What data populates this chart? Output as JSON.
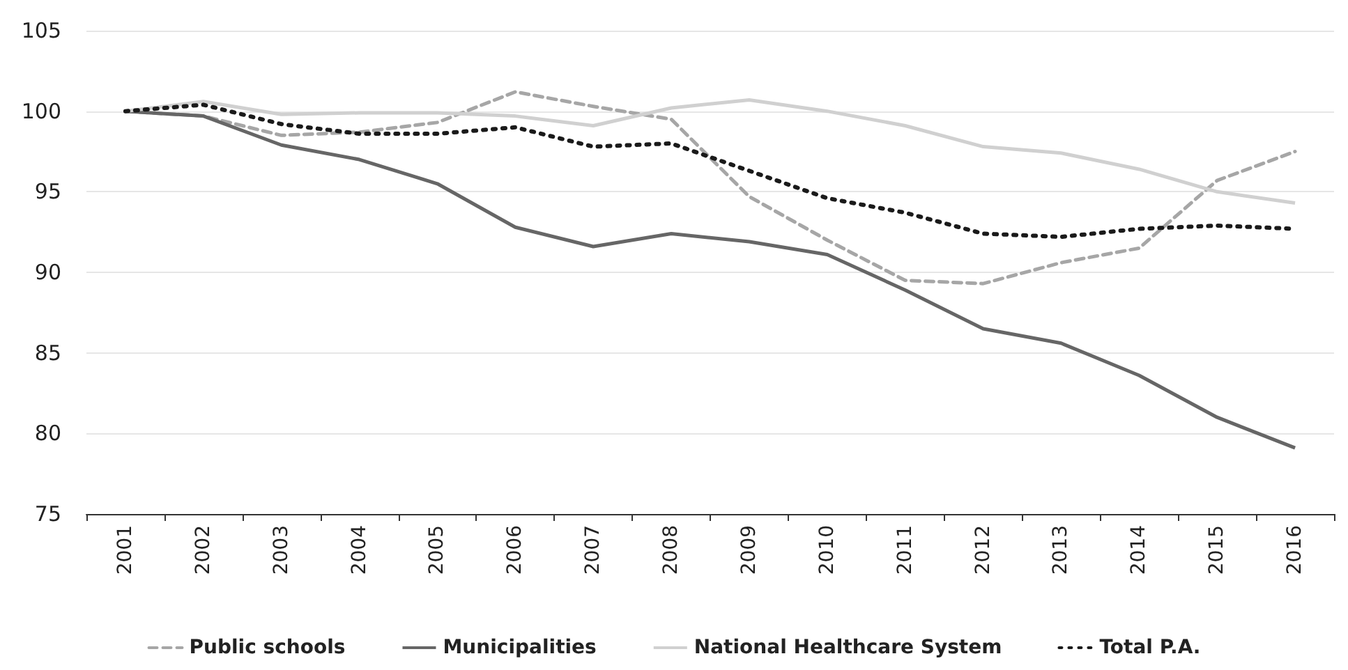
{
  "chart_data": {
    "type": "line",
    "categories": [
      "2001",
      "2002",
      "2003",
      "2004",
      "2005",
      "2006",
      "2007",
      "2008",
      "2009",
      "2010",
      "2011",
      "2012",
      "2013",
      "2014",
      "2015",
      "2016"
    ],
    "series": [
      {
        "name": "Public schools",
        "color": "#a6a6a6",
        "line_style": "dashed",
        "values": [
          100,
          99.7,
          98.5,
          98.7,
          99.3,
          101.2,
          100.3,
          99.5,
          94.7,
          92.0,
          89.5,
          89.3,
          90.6,
          91.5,
          95.7,
          97.5
        ]
      },
      {
        "name": "Municipalities",
        "color": "#666666",
        "line_style": "solid",
        "values": [
          100,
          99.7,
          97.9,
          97.0,
          95.5,
          92.8,
          91.6,
          92.4,
          91.9,
          91.1,
          88.9,
          86.5,
          85.6,
          83.6,
          81.0,
          79.1
        ]
      },
      {
        "name": "National Healthcare System",
        "color": "#d0d0d0",
        "line_style": "solid",
        "values": [
          100,
          100.6,
          99.8,
          99.9,
          99.9,
          99.7,
          99.1,
          100.2,
          100.7,
          100.0,
          99.1,
          97.8,
          97.4,
          96.4,
          95.0,
          94.3
        ]
      },
      {
        "name": "Total P.A.",
        "color": "#1a1a1a",
        "line_style": "dotted",
        "values": [
          100,
          100.4,
          99.2,
          98.6,
          98.6,
          99.0,
          97.8,
          98.0,
          96.3,
          94.6,
          93.7,
          92.4,
          92.2,
          92.7,
          92.9,
          92.7
        ]
      }
    ],
    "ylim": [
      75,
      105
    ],
    "yticks": [
      75,
      80,
      85,
      90,
      95,
      100,
      105
    ],
    "grid": "y",
    "legend": "bottom",
    "marker": "none"
  }
}
